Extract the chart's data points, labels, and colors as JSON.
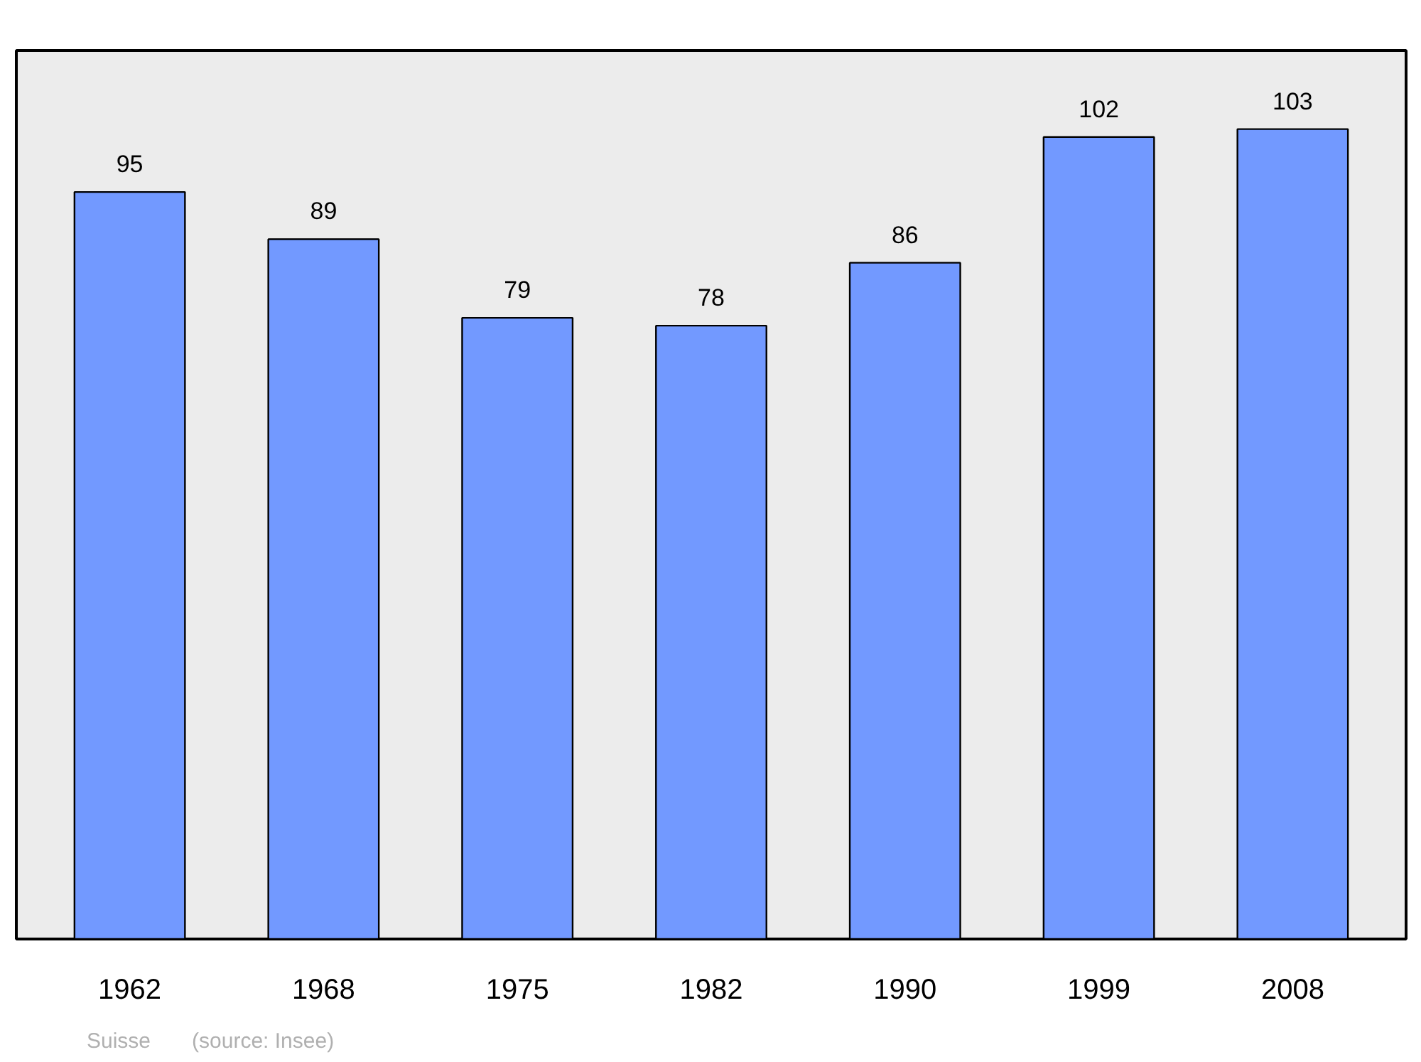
{
  "chart_data": {
    "type": "bar",
    "categories": [
      "1962",
      "1968",
      "1975",
      "1982",
      "1990",
      "1999",
      "2008"
    ],
    "values": [
      95,
      89,
      79,
      78,
      86,
      102,
      103
    ],
    "color": "#7299ff",
    "ylim": [
      0,
      113
    ],
    "data_labels": true,
    "grid": false,
    "annotations": [
      "Suisse",
      "(source: Insee)"
    ]
  }
}
